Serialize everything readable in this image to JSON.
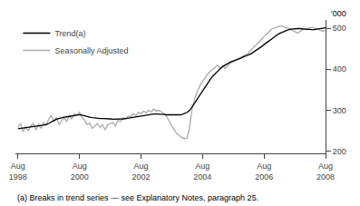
{
  "chart_data": {
    "type": "line",
    "ylabel": "'000",
    "annotations": [
      "(a) Breaks in trend series — see Explanatory Notes, paragraph 25."
    ],
    "categories": [
      "Aug\n1998",
      null,
      null,
      null,
      null,
      null,
      null,
      null,
      null,
      null,
      null,
      null,
      null,
      null,
      null,
      null,
      null,
      null,
      null,
      null,
      null,
      null,
      null,
      null,
      "Aug\n2000",
      null,
      null,
      null,
      null,
      null,
      null,
      null,
      null,
      null,
      null,
      null,
      null,
      null,
      null,
      null,
      null,
      null,
      null,
      null,
      null,
      null,
      null,
      null,
      "Aug\n2002",
      null,
      null,
      null,
      null,
      null,
      null,
      null,
      null,
      null,
      null,
      null,
      null,
      null,
      null,
      null,
      null,
      null,
      null,
      null,
      null,
      null,
      null,
      null,
      "Aug\n2004",
      null,
      null,
      null,
      null,
      null,
      null,
      null,
      null,
      null,
      null,
      null,
      null,
      null,
      null,
      null,
      null,
      null,
      null,
      null,
      null,
      null,
      null,
      null,
      "Aug\n2006",
      null,
      null,
      null,
      null,
      null,
      null,
      null,
      null,
      null,
      null,
      null,
      null,
      null,
      null,
      null,
      null,
      null,
      null,
      null,
      null,
      null,
      null,
      null,
      "Aug\n2008"
    ],
    "ylim": [
      195,
      520
    ],
    "yticks": [
      200,
      300,
      400,
      500
    ],
    "grid": false,
    "legend": "upper left",
    "series": [
      {
        "name": "Seasonally Adjusted",
        "color": "#aaaaaa",
        "values": [
          258,
          268,
          248,
          260,
          250,
          262,
          268,
          252,
          265,
          256,
          270,
          264,
          278,
          288,
          272,
          282,
          265,
          275,
          282,
          272,
          288,
          278,
          292,
          288,
          295,
          282,
          276,
          265,
          268,
          256,
          262,
          268,
          258,
          265,
          252,
          264,
          268,
          270,
          262,
          276,
          272,
          282,
          278,
          286,
          285,
          292,
          287,
          295,
          292,
          298,
          294,
          300,
          296,
          303,
          298,
          300,
          296,
          292,
          285,
          272,
          262,
          252,
          243,
          238,
          233,
          231,
          232,
          260,
          305,
          330,
          345,
          360,
          370,
          380,
          388,
          395,
          400,
          406,
          410,
          400,
          408,
          402,
          410,
          415,
          418,
          422,
          426,
          430,
          433,
          436,
          440,
          447,
          453,
          460,
          466,
          473,
          480,
          487,
          492,
          498,
          500,
          503,
          505,
          505,
          503,
          500,
          498,
          494,
          492,
          488,
          492,
          496,
          498,
          500,
          501,
          502,
          500,
          498,
          495,
          492,
          495
        ]
      },
      {
        "name": "Trend(a)",
        "color": "#000000",
        "values": [
          255,
          256,
          257,
          258,
          258,
          259,
          260,
          261,
          262,
          263,
          264,
          265,
          268,
          272,
          275,
          278,
          280,
          282,
          283,
          284,
          285,
          286,
          287,
          288,
          289,
          288,
          286,
          284,
          283,
          282,
          281,
          280,
          280,
          280,
          280,
          279,
          279,
          278,
          278,
          278,
          278,
          279,
          280,
          281,
          282,
          283,
          284,
          286,
          287,
          288,
          289,
          290,
          290,
          291,
          291,
          291,
          290,
          290,
          289,
          289,
          288,
          288,
          288,
          289,
          290,
          292,
          295,
          300,
          308,
          318,
          328,
          338,
          348,
          358,
          367,
          375,
          383,
          390,
          396,
          402,
          407,
          411,
          415,
          418,
          420,
          422,
          425,
          427,
          430,
          432,
          435,
          438,
          442,
          446,
          450,
          455,
          460,
          465,
          470,
          475,
          479,
          483,
          487,
          490,
          493,
          495,
          497,
          498,
          499,
          499,
          499,
          498,
          498,
          497,
          497,
          496,
          497,
          498,
          499,
          500,
          501
        ]
      }
    ]
  }
}
